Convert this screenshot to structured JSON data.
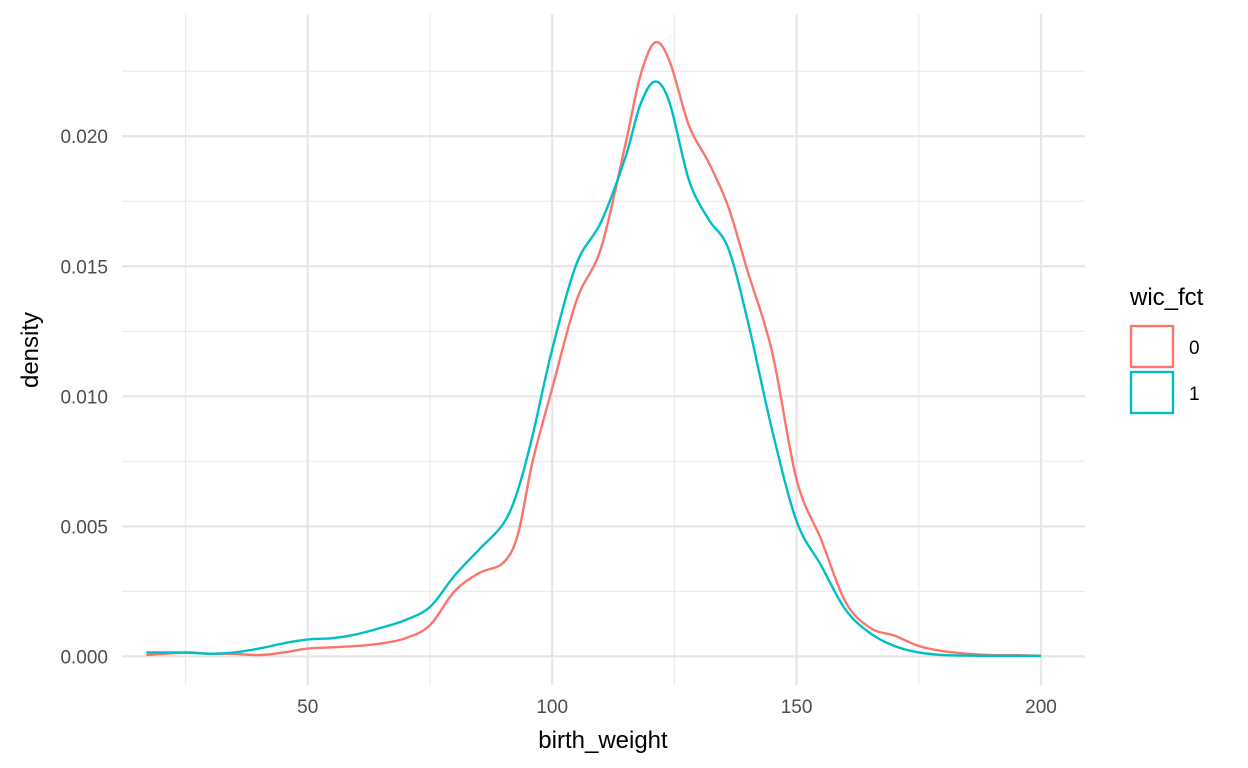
{
  "chart_data": {
    "type": "line",
    "title": "",
    "xlabel": "birth_weight",
    "ylabel": "density",
    "xlim": [
      12,
      209
    ],
    "ylim": [
      -0.0011,
      0.0247
    ],
    "x_ticks": [
      50,
      100,
      150,
      200
    ],
    "x_tick_labels": [
      "50",
      "100",
      "150",
      "200"
    ],
    "y_ticks": [
      0,
      0.005,
      0.01,
      0.015,
      0.02
    ],
    "y_tick_labels": [
      "0.000",
      "0.005",
      "0.010",
      "0.015",
      "0.020"
    ],
    "grid": true,
    "legend": {
      "title": "wic_fct",
      "position": "right"
    },
    "series": [
      {
        "name": "0",
        "color": "#F8766D",
        "x": [
          17,
          25,
          30,
          35,
          40,
          45,
          50,
          55,
          60,
          65,
          70,
          75,
          80,
          85,
          90,
          93,
          96,
          100,
          105,
          110,
          115,
          118,
          121,
          124,
          128,
          132,
          136,
          140,
          145,
          150,
          155,
          160,
          165,
          170,
          175,
          180,
          185,
          190,
          195,
          200
        ],
        "y": [
          5e-05,
          0.00015,
          0.0001,
          0.0001,
          5e-05,
          0.00015,
          0.0003,
          0.00035,
          0.0004,
          0.0005,
          0.0007,
          0.0012,
          0.0025,
          0.0032,
          0.0036,
          0.0047,
          0.0075,
          0.0103,
          0.0137,
          0.0157,
          0.0197,
          0.0223,
          0.0236,
          0.0229,
          0.0204,
          0.019,
          0.0173,
          0.0148,
          0.0117,
          0.0068,
          0.0045,
          0.0021,
          0.0011,
          0.0008,
          0.0004,
          0.0002,
          0.0001,
          5e-05,
          5e-05,
          2e-05
        ]
      },
      {
        "name": "1",
        "color": "#00BFC4",
        "x": [
          17,
          25,
          30,
          35,
          40,
          45,
          50,
          55,
          60,
          65,
          70,
          75,
          80,
          85,
          90,
          93,
          96,
          100,
          105,
          110,
          115,
          118,
          121,
          124,
          128,
          132,
          136,
          140,
          145,
          150,
          155,
          160,
          165,
          170,
          175,
          180,
          185,
          190,
          195,
          200
        ],
        "y": [
          0.00015,
          0.00015,
          0.0001,
          0.00015,
          0.0003,
          0.0005,
          0.00065,
          0.0007,
          0.00085,
          0.0011,
          0.0014,
          0.0019,
          0.0031,
          0.0041,
          0.0051,
          0.0064,
          0.0085,
          0.0118,
          0.0151,
          0.0167,
          0.0192,
          0.0212,
          0.0221,
          0.0213,
          0.0183,
          0.0168,
          0.0157,
          0.0129,
          0.0087,
          0.0052,
          0.0035,
          0.0018,
          0.0009,
          0.0004,
          0.00015,
          5e-05,
          3e-05,
          2e-05,
          2e-05,
          2e-05
        ]
      }
    ]
  }
}
